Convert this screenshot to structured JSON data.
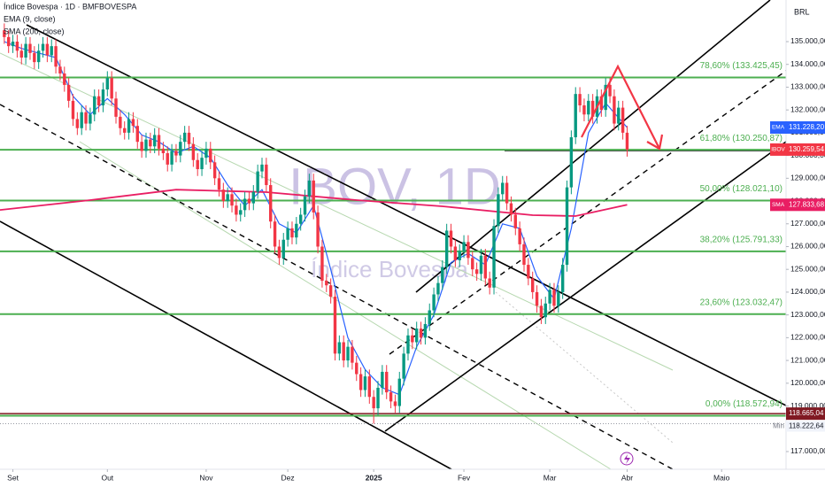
{
  "chart_data": {
    "type": "candlestick",
    "title": "Índice Bovespa · 1D · BMFBOVESPA",
    "watermark": "IBOV, 1D",
    "watermark_subtitle": "Índice Bovespa",
    "currency": "BRL",
    "up_color": "#089981",
    "down_color": "#f23645",
    "xlim": [
      -3,
      180
    ],
    "ylim": [
      116221,
      136827
    ],
    "xticks": [
      {
        "value": 0,
        "label": "Set"
      },
      {
        "value": 22,
        "label": "Out"
      },
      {
        "value": 45,
        "label": "Nov"
      },
      {
        "value": 64,
        "label": "Dez"
      },
      {
        "value": 84,
        "label": "2025"
      },
      {
        "value": 105,
        "label": "Fev"
      },
      {
        "value": 125,
        "label": "Mar"
      },
      {
        "value": 143,
        "label": "Abr"
      },
      {
        "value": 165,
        "label": "Maio"
      }
    ],
    "yticks": [
      {
        "value": 117000,
        "label": "117.000,00"
      },
      {
        "value": 118000,
        "label": "118.000,00"
      },
      {
        "value": 119000,
        "label": "119.000,00"
      },
      {
        "value": 120000,
        "label": "120.000,00"
      },
      {
        "value": 121000,
        "label": "121.000,00"
      },
      {
        "value": 122000,
        "label": "122.000,00"
      },
      {
        "value": 123000,
        "label": "123.000,00"
      },
      {
        "value": 124000,
        "label": "124.000,00"
      },
      {
        "value": 125000,
        "label": "125.000,00"
      },
      {
        "value": 126000,
        "label": "126.000,00"
      },
      {
        "value": 127000,
        "label": "127.000,00"
      },
      {
        "value": 128000,
        "label": "128.000,00"
      },
      {
        "value": 129000,
        "label": "129.000,00"
      },
      {
        "value": 130000,
        "label": "130.000,00"
      },
      {
        "value": 131000,
        "label": "131.000,00"
      },
      {
        "value": 132000,
        "label": "132.000,00"
      },
      {
        "value": 133000,
        "label": "133.000,00"
      },
      {
        "value": 134000,
        "label": "134.000,00"
      },
      {
        "value": 135000,
        "label": "135.000,00"
      }
    ],
    "x": [
      -2,
      -1,
      0,
      1,
      2,
      3,
      4,
      5,
      6,
      7,
      8,
      9,
      10,
      11,
      12,
      13,
      14,
      15,
      16,
      17,
      18,
      19,
      20,
      21,
      22,
      23,
      24,
      25,
      26,
      27,
      28,
      29,
      30,
      31,
      32,
      33,
      34,
      35,
      36,
      37,
      38,
      39,
      40,
      41,
      42,
      43,
      44,
      45,
      46,
      47,
      48,
      49,
      50,
      51,
      52,
      53,
      54,
      55,
      56,
      57,
      58,
      59,
      60,
      61,
      62,
      63,
      64,
      65,
      66,
      67,
      68,
      69,
      70,
      71,
      72,
      73,
      74,
      75,
      76,
      77,
      78,
      79,
      80,
      81,
      82,
      83,
      84,
      85,
      86,
      87,
      88,
      89,
      90,
      91,
      92,
      93,
      94,
      95,
      96,
      97,
      98,
      99,
      100,
      101,
      102,
      103,
      104,
      105,
      106,
      107,
      108,
      109,
      110,
      111,
      112,
      113,
      114,
      115,
      116,
      117,
      118,
      119,
      120,
      121,
      122,
      123,
      124,
      125,
      126,
      127,
      128,
      129,
      130,
      131,
      132,
      133,
      134,
      135,
      136,
      137,
      138,
      139,
      140,
      141,
      142,
      143
    ],
    "open": [
      135500,
      135200,
      134800,
      135000,
      134600,
      134300,
      134900,
      134500,
      134100,
      134600,
      134900,
      134400,
      134800,
      133900,
      133600,
      133100,
      132400,
      131600,
      131200,
      131900,
      131400,
      131800,
      132600,
      132200,
      132900,
      133400,
      132500,
      131700,
      131200,
      131000,
      131600,
      131300,
      130600,
      130200,
      130700,
      130400,
      130900,
      130300,
      130100,
      129600,
      130200,
      130000,
      130600,
      131000,
      130500,
      129800,
      129400,
      129900,
      130300,
      129700,
      129000,
      128500,
      128000,
      128300,
      127800,
      127400,
      127600,
      128100,
      127900,
      128400,
      129300,
      129600,
      128700,
      127100,
      126000,
      125500,
      126300,
      126800,
      126400,
      127000,
      127400,
      128200,
      128900,
      127500,
      126000,
      124500,
      124300,
      123800,
      121300,
      121800,
      121000,
      121600,
      120900,
      120400,
      119700,
      120300,
      119400,
      118900,
      119800,
      120500,
      119600,
      119200,
      119000,
      120200,
      121300,
      122100,
      121800,
      122400,
      122000,
      122600,
      123200,
      123900,
      124400,
      125100,
      126700,
      126000,
      125400,
      125800,
      126200,
      125500,
      125000,
      124800,
      125600,
      124600,
      124200,
      126900,
      128300,
      128800,
      127900,
      127400,
      126800,
      126100,
      125200,
      124600,
      124000,
      123400,
      122900,
      123500,
      124100,
      123400,
      124000,
      125200,
      128600,
      130800,
      132700,
      132200,
      131800,
      132400,
      131700,
      132600,
      132000,
      133100,
      132600,
      131400,
      132100,
      131000
    ],
    "high": [
      135800,
      135500,
      135300,
      135300,
      134900,
      135200,
      135200,
      134800,
      134900,
      135200,
      135200,
      135100,
      135100,
      134200,
      133900,
      133400,
      132700,
      131900,
      132200,
      132200,
      132100,
      132900,
      132900,
      133200,
      133700,
      133700,
      132800,
      132000,
      131500,
      131900,
      131900,
      131600,
      130900,
      131000,
      131000,
      131200,
      131200,
      130600,
      130400,
      130500,
      130500,
      130900,
      131300,
      131300,
      130800,
      130100,
      130200,
      130600,
      130600,
      130000,
      129300,
      128800,
      128600,
      128600,
      128100,
      127900,
      128400,
      128400,
      128700,
      129600,
      129900,
      129900,
      129000,
      127400,
      126300,
      126600,
      127100,
      127100,
      127300,
      127700,
      128500,
      129200,
      129200,
      127800,
      126300,
      124800,
      124600,
      124100,
      122100,
      122100,
      121900,
      121900,
      121200,
      120700,
      120600,
      120600,
      119700,
      120100,
      120800,
      120800,
      119900,
      119500,
      120500,
      121600,
      122400,
      122400,
      122700,
      122700,
      122900,
      123500,
      124200,
      124700,
      125400,
      127000,
      127000,
      126300,
      126100,
      126500,
      126500,
      125800,
      125300,
      125900,
      125900,
      124900,
      127200,
      128600,
      129100,
      129100,
      128200,
      127700,
      127100,
      126400,
      125500,
      124900,
      124300,
      123700,
      123800,
      124400,
      124400,
      124300,
      125500,
      128900,
      131100,
      133000,
      133000,
      132500,
      132700,
      132700,
      132900,
      132900,
      133400,
      133400,
      132900,
      132400,
      132400,
      131300
    ],
    "low": [
      134900,
      134500,
      134500,
      134300,
      134000,
      134000,
      134200,
      133800,
      133800,
      134300,
      134100,
      134100,
      133600,
      133300,
      132800,
      132100,
      131300,
      130900,
      130900,
      131100,
      131100,
      131500,
      131900,
      131900,
      132600,
      132200,
      131400,
      130900,
      130700,
      130700,
      131000,
      130300,
      129900,
      129900,
      130100,
      130100,
      130000,
      129800,
      129300,
      129300,
      129700,
      129700,
      130300,
      130200,
      129500,
      129100,
      129100,
      129600,
      129400,
      128700,
      128200,
      127700,
      127700,
      127500,
      127100,
      127100,
      127300,
      127600,
      127600,
      128100,
      129000,
      128400,
      126800,
      125700,
      125200,
      125200,
      126000,
      126100,
      126100,
      126700,
      127100,
      127900,
      127200,
      125700,
      124200,
      124000,
      123500,
      121000,
      121000,
      120700,
      120700,
      120600,
      120100,
      119400,
      119400,
      119100,
      118222.64,
      118600,
      119500,
      119300,
      118900,
      118700,
      118700,
      119900,
      121000,
      121500,
      121500,
      121700,
      121700,
      122300,
      122900,
      123600,
      124100,
      124800,
      125700,
      125100,
      125100,
      125500,
      125200,
      124700,
      124500,
      124500,
      124300,
      123900,
      123900,
      126600,
      128000,
      127600,
      127100,
      126500,
      125800,
      124900,
      124300,
      123700,
      123100,
      122600,
      122600,
      123200,
      123100,
      123100,
      123700,
      124900,
      128300,
      130500,
      131900,
      131500,
      131500,
      131400,
      131400,
      131700,
      131700,
      132300,
      131100,
      131100,
      130700,
      129950
    ],
    "close": [
      135200,
      134800,
      135000,
      134600,
      134300,
      134900,
      134500,
      134100,
      134600,
      134900,
      134400,
      134800,
      133900,
      133600,
      133100,
      132400,
      131600,
      131200,
      131900,
      131400,
      131800,
      132600,
      132200,
      132900,
      133400,
      132500,
      131700,
      131200,
      131000,
      131600,
      131300,
      130600,
      130200,
      130700,
      130400,
      130900,
      130300,
      130100,
      129600,
      130200,
      130000,
      130600,
      131000,
      130500,
      129800,
      129400,
      129900,
      130300,
      129700,
      129000,
      128500,
      128000,
      128300,
      127800,
      127400,
      127600,
      128100,
      127900,
      128400,
      129300,
      129600,
      128700,
      127100,
      126000,
      125500,
      126300,
      126800,
      126400,
      127000,
      127400,
      128200,
      128900,
      127500,
      126000,
      124500,
      124300,
      123800,
      121300,
      121800,
      121000,
      121600,
      120900,
      120400,
      119700,
      120300,
      119400,
      118900,
      119800,
      120500,
      119600,
      119200,
      119000,
      120200,
      121300,
      122100,
      121800,
      122400,
      122000,
      122600,
      123200,
      123900,
      124400,
      125100,
      126700,
      126000,
      125400,
      125800,
      126200,
      125500,
      125000,
      124800,
      125600,
      124600,
      124200,
      126900,
      128300,
      128800,
      127900,
      127400,
      126800,
      126100,
      125200,
      124600,
      124000,
      123400,
      122900,
      123500,
      124100,
      123400,
      124000,
      125200,
      128600,
      130800,
      132700,
      132200,
      131800,
      132400,
      131700,
      132600,
      132000,
      133100,
      132600,
      131400,
      132100,
      131000,
      130259.54
    ],
    "last_price": {
      "tag": "IBOV",
      "value": 130259.54,
      "label": "130.259,54"
    },
    "indicators": [
      {
        "name": "EMA (9, close)",
        "tag": "EMA",
        "color": "#2962ff",
        "x": [
          -2,
          2,
          6,
          10,
          14,
          18,
          22,
          26,
          30,
          34,
          38,
          42,
          46,
          50,
          54,
          58,
          62,
          66,
          70,
          74,
          78,
          82,
          86,
          90,
          94,
          98,
          102,
          106,
          110,
          114,
          118,
          122,
          126,
          130,
          134,
          138,
          143
        ],
        "values": [
          135000,
          134700,
          134500,
          134300,
          132600,
          131800,
          132500,
          131800,
          130900,
          130600,
          130100,
          130400,
          129900,
          128700,
          127800,
          128500,
          127000,
          126600,
          127800,
          125000,
          122000,
          120600,
          119800,
          119500,
          121600,
          123000,
          125300,
          125700,
          125200,
          127000,
          126800,
          124700,
          123700,
          126800,
          131000,
          132300,
          131228.2
        ],
        "value_label": "131.228,20"
      },
      {
        "name": "SMA (200, close)",
        "tag": "SMA",
        "color": "#e91e63",
        "x": [
          -3,
          18,
          38,
          59,
          80,
          100,
          121,
          131,
          143
        ],
        "values": [
          127610,
          128040,
          128500,
          128390,
          128040,
          127770,
          127380,
          127340,
          127833.68
        ],
        "value_label": "127.833,68"
      }
    ],
    "fib_color": "#4caf50",
    "fib_levels": [
      {
        "value": 133425.45,
        "label": "78,60% (133.425,45)"
      },
      {
        "value": 130250.87,
        "label": "61,80% (130.250,87)"
      },
      {
        "value": 128021.1,
        "label": "50,00% (128.021,10)"
      },
      {
        "value": 125791.33,
        "label": "38,20% (125.791,33)"
      },
      {
        "value": 123032.47,
        "label": "23,60% (123.032,47)"
      },
      {
        "value": 118572.94,
        "label": "0,00% (118.572,94)"
      }
    ],
    "prior_low": {
      "value": 118665.04,
      "label": "118.665,04",
      "color": "#801922"
    },
    "minimum": {
      "name": "Min",
      "value": 118222.64,
      "label": "118.222,64"
    }
  }
}
